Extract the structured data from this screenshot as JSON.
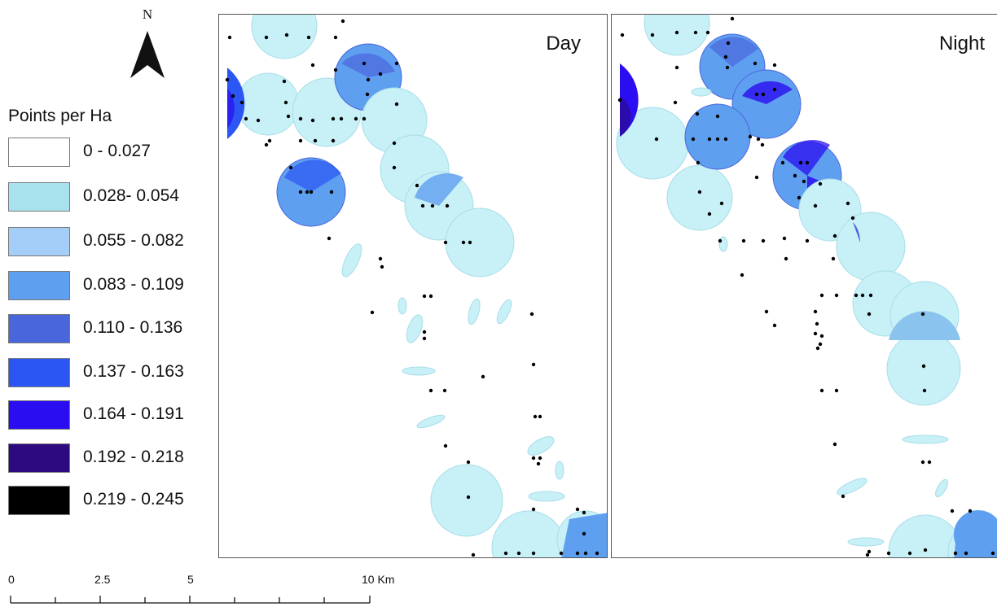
{
  "north_arrow": {
    "label": "N"
  },
  "legend": {
    "title": "Points per Ha",
    "items": [
      {
        "label": "0 - 0.027",
        "color": "#ffffff"
      },
      {
        "label": "0.028- 0.054",
        "color": "#a8e2ec"
      },
      {
        "label": "0.055 - 0.082",
        "color": "#a4cdf8"
      },
      {
        "label": "0.083 - 0.109",
        "color": "#5f9ff0"
      },
      {
        "label": "0.110 - 0.136",
        "color": "#4a66dc"
      },
      {
        "label": "0.137 - 0.163",
        "color": "#2b56f4"
      },
      {
        "label": "0.164 - 0.191",
        "color": "#2a0df0"
      },
      {
        "label": "0.192 - 0.218",
        "color": "#2e0a80"
      },
      {
        "label": "0.219 - 0.245",
        "color": "#000000"
      }
    ]
  },
  "panels": {
    "day": {
      "title": "Day"
    },
    "night": {
      "title": "Night"
    }
  },
  "scale_bar": {
    "unit": "Km",
    "labels": [
      "0",
      "2.5",
      "5",
      "10 Km"
    ]
  },
  "colors": {
    "light_cyan": "#c7f0f7",
    "cyan_edge": "#a9dde8",
    "mid_blue": "#5f9ff0",
    "blue": "#4a66dc",
    "violet": "#2a0df0",
    "point": "#000000"
  }
}
